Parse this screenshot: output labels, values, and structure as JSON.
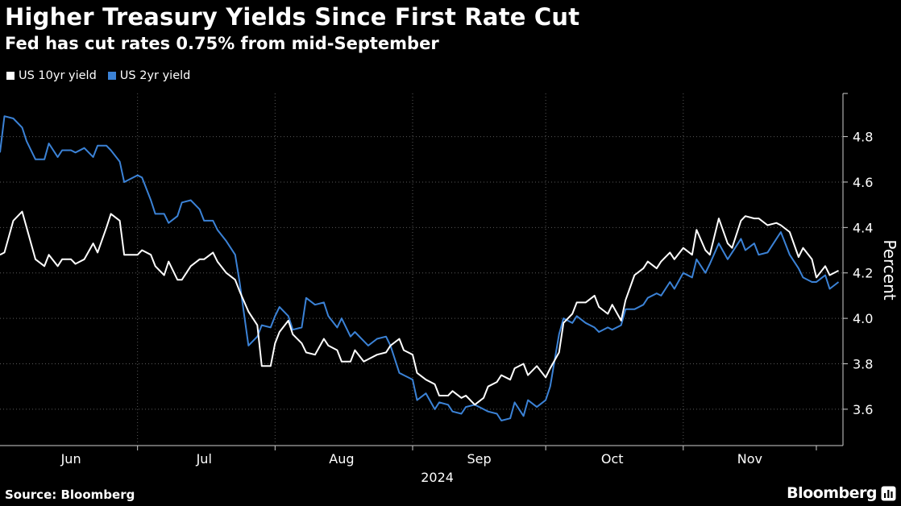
{
  "header": {
    "title": "Higher Treasury Yields Since First Rate Cut",
    "subtitle": "Fed has cut rates 0.75% from mid-September"
  },
  "footer": {
    "source": "Source: Bloomberg",
    "brand": "Bloomberg"
  },
  "icons": {
    "brand": "terminal-chart-icon"
  },
  "chart_data": {
    "type": "line",
    "ylabel": "Percent",
    "year_label": "2024",
    "ylim": [
      3.44,
      4.99
    ],
    "yticks": [
      3.6,
      3.8,
      4.0,
      4.2,
      4.4,
      4.6,
      4.8
    ],
    "ytick_labels": [
      "3.6",
      "3.8",
      "4.0",
      "4.2",
      "4.4",
      "4.6",
      "4.8"
    ],
    "x_start": "2024-05-31",
    "x_end": "2024-11-29",
    "month_labels": [
      {
        "label": "Jun",
        "date": "2024-06-16"
      },
      {
        "label": "Jul",
        "date": "2024-07-16"
      },
      {
        "label": "Aug",
        "date": "2024-08-16"
      },
      {
        "label": "Sep",
        "date": "2024-09-16"
      },
      {
        "label": "Oct",
        "date": "2024-10-16"
      },
      {
        "label": "Nov",
        "date": "2024-11-16"
      }
    ],
    "month_boundaries": [
      "2024-07-01",
      "2024-08-01",
      "2024-09-01",
      "2024-10-01",
      "2024-11-01"
    ],
    "grid": true,
    "legend_position": "top-left",
    "series": [
      {
        "name": "US 10yr yield",
        "color": "#ffffff",
        "x": [
          "2024-05-31",
          "2024-06-01",
          "2024-06-03",
          "2024-06-05",
          "2024-06-06",
          "2024-06-08",
          "2024-06-10",
          "2024-06-11",
          "2024-06-13",
          "2024-06-14",
          "2024-06-16",
          "2024-06-17",
          "2024-06-19",
          "2024-06-21",
          "2024-06-22",
          "2024-06-24",
          "2024-06-25",
          "2024-06-27",
          "2024-06-28",
          "2024-07-01",
          "2024-07-02",
          "2024-07-04",
          "2024-07-05",
          "2024-07-07",
          "2024-07-08",
          "2024-07-10",
          "2024-07-11",
          "2024-07-13",
          "2024-07-15",
          "2024-07-16",
          "2024-07-18",
          "2024-07-19",
          "2024-07-21",
          "2024-07-23",
          "2024-07-24",
          "2024-07-26",
          "2024-07-28",
          "2024-07-29",
          "2024-07-31",
          "2024-08-01",
          "2024-08-02",
          "2024-08-04",
          "2024-08-05",
          "2024-08-07",
          "2024-08-08",
          "2024-08-10",
          "2024-08-12",
          "2024-08-13",
          "2024-08-15",
          "2024-08-16",
          "2024-08-18",
          "2024-08-19",
          "2024-08-21",
          "2024-08-22",
          "2024-08-24",
          "2024-08-26",
          "2024-08-27",
          "2024-08-29",
          "2024-08-30",
          "2024-09-01",
          "2024-09-02",
          "2024-09-04",
          "2024-09-06",
          "2024-09-07",
          "2024-09-09",
          "2024-09-10",
          "2024-09-12",
          "2024-09-13",
          "2024-09-15",
          "2024-09-17",
          "2024-09-18",
          "2024-09-20",
          "2024-09-21",
          "2024-09-23",
          "2024-09-24",
          "2024-09-26",
          "2024-09-27",
          "2024-09-29",
          "2024-10-01",
          "2024-10-02",
          "2024-10-04",
          "2024-10-05",
          "2024-10-07",
          "2024-10-08",
          "2024-10-10",
          "2024-10-12",
          "2024-10-13",
          "2024-10-15",
          "2024-10-16",
          "2024-10-18",
          "2024-10-19",
          "2024-10-21",
          "2024-10-23",
          "2024-10-24",
          "2024-10-26",
          "2024-10-27",
          "2024-10-29",
          "2024-10-30",
          "2024-11-01",
          "2024-11-03",
          "2024-11-04",
          "2024-11-06",
          "2024-11-07",
          "2024-11-09",
          "2024-11-11",
          "2024-11-12",
          "2024-11-14",
          "2024-11-15",
          "2024-11-17",
          "2024-11-18",
          "2024-11-20",
          "2024-11-22",
          "2024-11-23",
          "2024-11-25",
          "2024-11-27",
          "2024-11-28"
        ],
        "values": [
          4.28,
          4.29,
          4.43,
          4.47,
          4.4,
          4.26,
          4.23,
          4.28,
          4.23,
          4.26,
          4.26,
          4.24,
          4.26,
          4.33,
          4.29,
          4.4,
          4.46,
          4.43,
          4.28,
          4.28,
          4.3,
          4.28,
          4.23,
          4.19,
          4.25,
          4.17,
          4.17,
          4.23,
          4.26,
          4.26,
          4.29,
          4.25,
          4.2,
          4.17,
          4.12,
          4.03,
          3.97,
          3.79,
          3.79,
          3.89,
          3.94,
          3.99,
          3.93,
          3.89,
          3.85,
          3.84,
          3.91,
          3.88,
          3.86,
          3.81,
          3.81,
          3.86,
          3.81,
          3.82,
          3.84,
          3.85,
          3.88,
          3.91,
          3.86,
          3.84,
          3.76,
          3.73,
          3.71,
          3.66,
          3.66,
          3.68,
          3.65,
          3.66,
          3.62,
          3.65,
          3.7,
          3.72,
          3.75,
          3.73,
          3.78,
          3.8,
          3.75,
          3.79,
          3.74,
          3.78,
          3.85,
          3.98,
          4.02,
          4.07,
          4.07,
          4.1,
          4.05,
          4.02,
          4.06,
          3.99,
          4.08,
          4.19,
          4.22,
          4.25,
          4.22,
          4.25,
          4.29,
          4.26,
          4.31,
          4.28,
          4.39,
          4.3,
          4.28,
          4.44,
          4.33,
          4.31,
          4.43,
          4.45,
          4.44,
          4.44,
          4.41,
          4.42,
          4.41,
          4.38,
          4.27,
          4.31
        ]
      },
      {
        "name": "US 2yr yield",
        "color": "#3b82d6",
        "x": [
          "2024-05-31",
          "2024-06-01",
          "2024-06-03",
          "2024-06-05",
          "2024-06-06",
          "2024-06-08",
          "2024-06-10",
          "2024-06-11",
          "2024-06-13",
          "2024-06-14",
          "2024-06-16",
          "2024-06-17",
          "2024-06-19",
          "2024-06-21",
          "2024-06-22",
          "2024-06-24",
          "2024-06-25",
          "2024-06-27",
          "2024-06-28",
          "2024-07-01",
          "2024-07-02",
          "2024-07-04",
          "2024-07-05",
          "2024-07-07",
          "2024-07-08",
          "2024-07-10",
          "2024-07-11",
          "2024-07-13",
          "2024-07-15",
          "2024-07-16",
          "2024-07-18",
          "2024-07-19",
          "2024-07-21",
          "2024-07-23",
          "2024-07-24",
          "2024-07-26",
          "2024-07-28",
          "2024-07-29",
          "2024-07-31",
          "2024-08-01",
          "2024-08-02",
          "2024-08-04",
          "2024-08-05",
          "2024-08-07",
          "2024-08-08",
          "2024-08-10",
          "2024-08-12",
          "2024-08-13",
          "2024-08-15",
          "2024-08-16",
          "2024-08-18",
          "2024-08-19",
          "2024-08-21",
          "2024-08-22",
          "2024-08-24",
          "2024-08-26",
          "2024-08-27",
          "2024-08-29",
          "2024-08-30",
          "2024-09-01",
          "2024-09-02",
          "2024-09-04",
          "2024-09-06",
          "2024-09-07",
          "2024-09-09",
          "2024-09-10",
          "2024-09-12",
          "2024-09-13",
          "2024-09-15",
          "2024-09-17",
          "2024-09-18",
          "2024-09-20",
          "2024-09-21",
          "2024-09-23",
          "2024-09-24",
          "2024-09-26",
          "2024-09-27",
          "2024-09-29",
          "2024-10-01",
          "2024-10-02",
          "2024-10-04",
          "2024-10-05",
          "2024-10-07",
          "2024-10-08",
          "2024-10-10",
          "2024-10-12",
          "2024-10-13",
          "2024-10-15",
          "2024-10-16",
          "2024-10-18",
          "2024-10-19",
          "2024-10-21",
          "2024-10-23",
          "2024-10-24",
          "2024-10-26",
          "2024-10-27",
          "2024-10-29",
          "2024-10-30",
          "2024-11-01",
          "2024-11-03",
          "2024-11-04",
          "2024-11-06",
          "2024-11-07",
          "2024-11-09",
          "2024-11-11",
          "2024-11-12",
          "2024-11-14",
          "2024-11-15",
          "2024-11-17",
          "2024-11-18",
          "2024-11-20",
          "2024-11-22",
          "2024-11-23",
          "2024-11-25",
          "2024-11-27",
          "2024-11-28"
        ],
        "values": [
          4.73,
          4.89,
          4.88,
          4.84,
          4.78,
          4.7,
          4.7,
          4.77,
          4.71,
          4.74,
          4.74,
          4.73,
          4.75,
          4.71,
          4.76,
          4.76,
          4.74,
          4.69,
          4.6,
          4.63,
          4.62,
          4.52,
          4.46,
          4.46,
          4.42,
          4.45,
          4.51,
          4.52,
          4.48,
          4.43,
          4.43,
          4.39,
          4.34,
          4.28,
          4.16,
          3.88,
          3.92,
          3.97,
          3.96,
          4.01,
          4.05,
          4.01,
          3.95,
          3.96,
          4.09,
          4.06,
          4.07,
          4.01,
          3.96,
          4.0,
          3.92,
          3.94,
          3.9,
          3.88,
          3.91,
          3.92,
          3.88,
          3.76,
          3.75,
          3.73,
          3.64,
          3.67,
          3.6,
          3.63,
          3.62,
          3.59,
          3.58,
          3.61,
          3.62,
          3.6,
          3.59,
          3.58,
          3.55,
          3.56,
          3.63,
          3.57,
          3.64,
          3.61,
          3.64,
          3.7,
          3.93,
          4.0,
          3.98,
          4.01,
          3.98,
          3.96,
          3.94,
          3.96,
          3.95,
          3.97,
          4.04,
          4.04,
          4.06,
          4.09,
          4.11,
          4.1,
          4.16,
          4.13,
          4.2,
          4.18,
          4.26,
          4.2,
          4.24,
          4.33,
          4.26,
          4.29,
          4.35,
          4.3,
          4.33,
          4.28,
          4.29,
          4.35,
          4.38,
          4.28,
          4.22,
          4.18
        ]
      }
    ],
    "series_extension": {
      "x": [
        "2024-11-28",
        "2024-11-30",
        "2024-12-01",
        "2024-12-03",
        "2024-12-04",
        "2024-12-06"
      ],
      "us10": [
        4.31,
        4.26,
        4.18,
        4.23,
        4.19,
        4.21
      ],
      "us2": [
        4.18,
        4.16,
        4.16,
        4.19,
        4.13,
        4.16
      ]
    }
  }
}
